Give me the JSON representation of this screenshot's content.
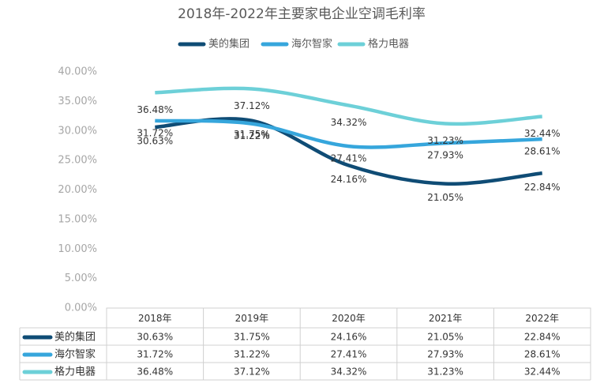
{
  "chart_data": {
    "type": "line",
    "title": "2018年-2022年主要家电企业空调毛利率",
    "categories": [
      "2018年",
      "2019年",
      "2020年",
      "2021年",
      "2022年"
    ],
    "series": [
      {
        "name": "美的集团",
        "color": "#0f4c75",
        "values": [
          30.63,
          31.75,
          24.16,
          21.05,
          22.84
        ],
        "value_labels": [
          "30.63%",
          "31.75%",
          "24.16%",
          "21.05%",
          "22.84%"
        ]
      },
      {
        "name": "海尔智家",
        "color": "#36a6dc",
        "values": [
          31.72,
          31.22,
          27.41,
          27.93,
          28.61
        ],
        "value_labels": [
          "31.72%",
          "31.22%",
          "27.41%",
          "27.93%",
          "28.61%"
        ]
      },
      {
        "name": "格力电器",
        "color": "#6dd0d8",
        "values": [
          36.48,
          37.12,
          34.32,
          31.23,
          32.44
        ],
        "value_labels": [
          "36.48%",
          "37.12%",
          "34.32%",
          "31.23%",
          "32.44%"
        ]
      }
    ],
    "ylim": [
      0,
      40
    ],
    "yticks": [
      {
        "value": 0,
        "label": "0.00%"
      },
      {
        "value": 5,
        "label": "5.00%"
      },
      {
        "value": 10,
        "label": "10.00%"
      },
      {
        "value": 15,
        "label": "15.00%"
      },
      {
        "value": 20,
        "label": "20.00%"
      },
      {
        "value": 25,
        "label": "25.00%"
      },
      {
        "value": 30,
        "label": "30.00%"
      },
      {
        "value": 35,
        "label": "35.00%"
      },
      {
        "value": 40,
        "label": "40.00%"
      }
    ],
    "legend": "top"
  }
}
